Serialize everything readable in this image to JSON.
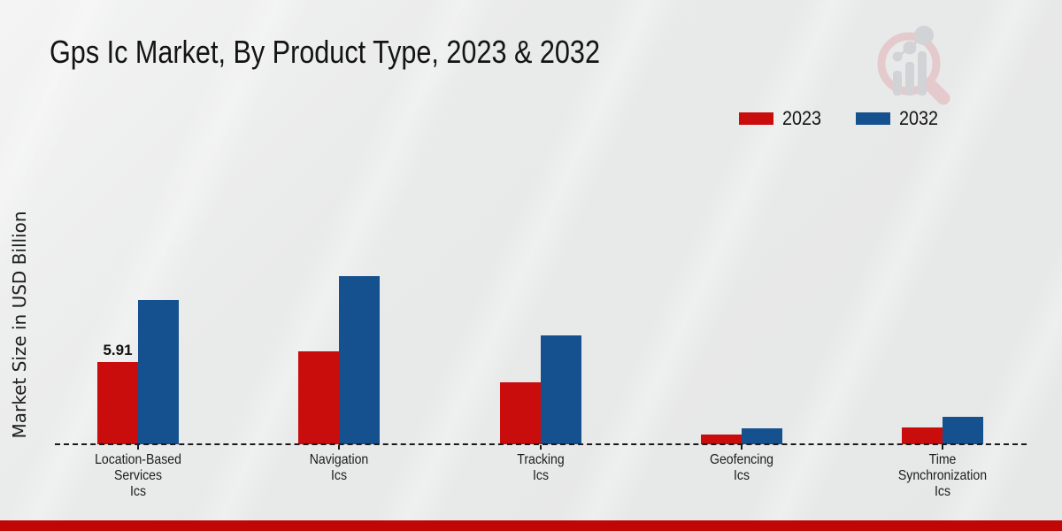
{
  "chart_data": {
    "type": "bar",
    "title": "Gps Ic Market, By Product Type, 2023 & 2032",
    "xlabel": "",
    "ylabel": "Market Size in USD Billion",
    "categories": [
      "Location-Based Services Ics",
      "Navigation Ics",
      "Tracking Ics",
      "Geofencing Ics",
      "Time Synchronization Ics"
    ],
    "category_lines": [
      [
        "Location-Based",
        "Services",
        "Ics"
      ],
      [
        "Navigation",
        "Ics"
      ],
      [
        "Tracking",
        "Ics"
      ],
      [
        "Geofencing",
        "Ics"
      ],
      [
        "Time",
        "Synchronization",
        "Ics"
      ]
    ],
    "series": [
      {
        "name": "2023",
        "color": "#c90d0d",
        "values": [
          5.91,
          6.68,
          4.45,
          0.7,
          1.21
        ]
      },
      {
        "name": "2032",
        "color": "#15518f",
        "values": [
          10.35,
          12.08,
          7.82,
          1.15,
          1.97
        ]
      }
    ],
    "annotations": [
      {
        "series": "2023",
        "category_index": 0,
        "text": "5.91"
      }
    ],
    "ylim": [
      0,
      13
    ],
    "grid": false,
    "legend_position": "top-right",
    "x_axis_style": "dashed"
  },
  "footer": {
    "accent_bar_color": "#c10606"
  }
}
